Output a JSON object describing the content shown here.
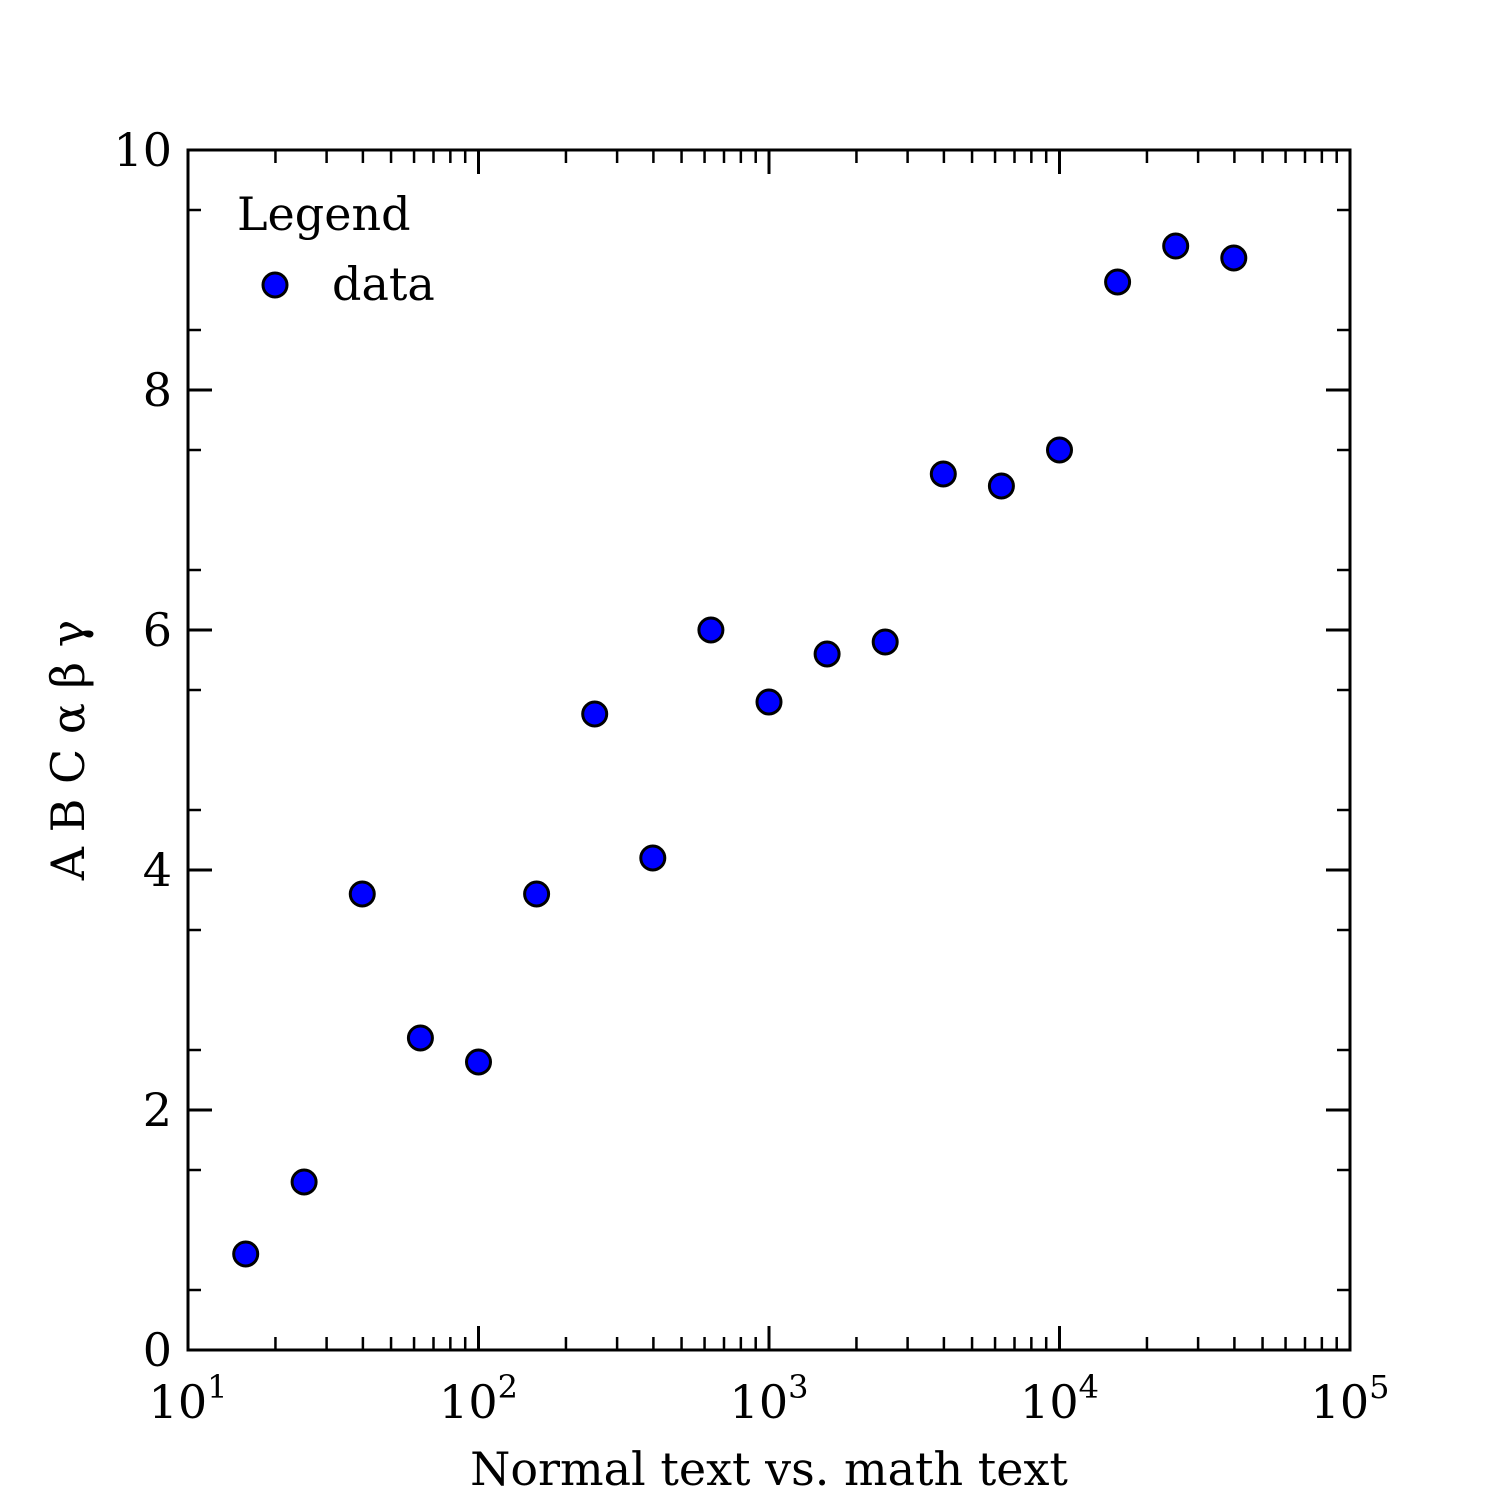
{
  "chart_data": {
    "type": "scatter",
    "title": "",
    "xlabel": "Normal text vs. math text",
    "ylabel": "A B C α β γ",
    "xscale": "log",
    "xlim": [
      10,
      100000
    ],
    "ylim": [
      0,
      10
    ],
    "x_ticks": [
      {
        "value": 10,
        "base": "10",
        "exp": "1"
      },
      {
        "value": 100,
        "base": "10",
        "exp": "2"
      },
      {
        "value": 1000,
        "base": "10",
        "exp": "3"
      },
      {
        "value": 10000,
        "base": "10",
        "exp": "4"
      },
      {
        "value": 100000,
        "base": "10",
        "exp": "5"
      }
    ],
    "y_ticks": [
      {
        "value": 0,
        "label": "0"
      },
      {
        "value": 2,
        "label": "2"
      },
      {
        "value": 4,
        "label": "4"
      },
      {
        "value": 6,
        "label": "6"
      },
      {
        "value": 8,
        "label": "8"
      },
      {
        "value": 10,
        "label": "10"
      }
    ],
    "grid": false,
    "ticks_direction": "in",
    "legend": {
      "title": "Legend",
      "position": "top-left",
      "entries": [
        {
          "label": "data",
          "marker": "circle",
          "color": "#0000ff"
        }
      ]
    },
    "series": [
      {
        "name": "data",
        "marker": "circle",
        "color": "#0000ff",
        "edgecolor": "#000000",
        "x": [
          15.8,
          25.1,
          39.8,
          63.1,
          100,
          158.5,
          251.2,
          398.1,
          631,
          1000,
          1584.9,
          2511.9,
          3981.1,
          6309.6,
          10000,
          15848.9,
          25118.9,
          39810.7
        ],
        "y": [
          0.8,
          1.4,
          3.8,
          2.6,
          2.4,
          3.8,
          5.3,
          4.1,
          6.0,
          5.4,
          5.8,
          5.9,
          7.3,
          7.2,
          7.5,
          8.9,
          9.2,
          9.1
        ]
      }
    ]
  }
}
